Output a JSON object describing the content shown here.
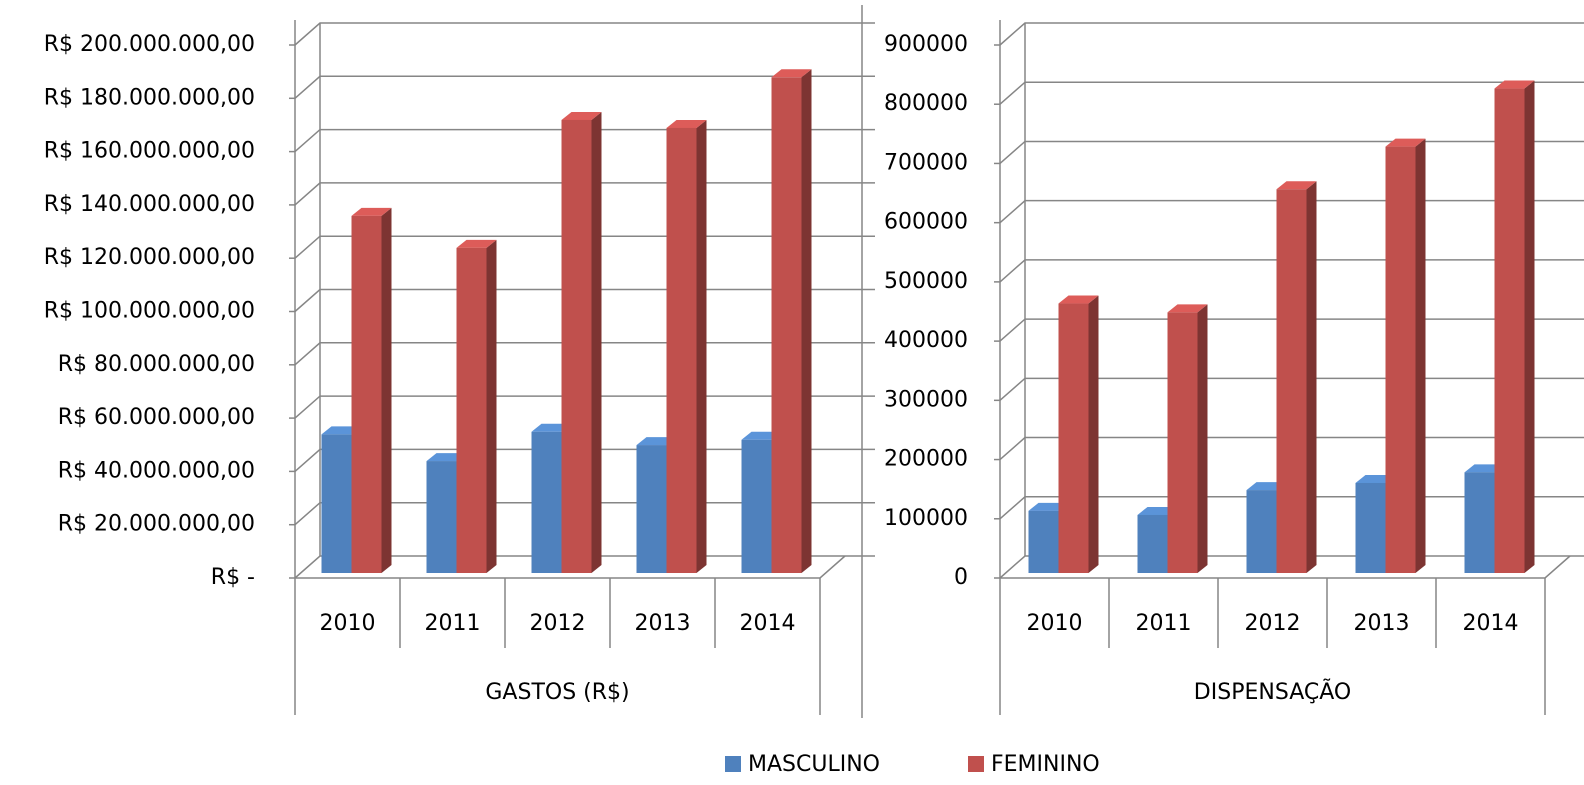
{
  "chart_data": [
    {
      "type": "bar3d",
      "xlabel": "GASTOS (R$)",
      "categories": [
        "2010",
        "2011",
        "2012",
        "2013",
        "2014"
      ],
      "series": [
        {
          "values": [
            52000000,
            42000000,
            53000000,
            48000000,
            50000000
          ]
        },
        {
          "values": [
            134000000,
            122000000,
            170000000,
            167000000,
            186000000
          ]
        }
      ],
      "ylim": [
        0,
        200000000
      ],
      "yticks": [
        {
          "value": 0,
          "label": "R$ -"
        },
        {
          "value": 20000000,
          "label": "R$ 20.000.000,00"
        },
        {
          "value": 40000000,
          "label": "R$ 40.000.000,00"
        },
        {
          "value": 60000000,
          "label": "R$ 60.000.000,00"
        },
        {
          "value": 80000000,
          "label": "R$ 80.000.000,00"
        },
        {
          "value": 100000000,
          "label": "R$ 100.000.000,00"
        },
        {
          "value": 120000000,
          "label": "R$ 120.000.000,00"
        },
        {
          "value": 140000000,
          "label": "R$ 140.000.000,00"
        },
        {
          "value": 160000000,
          "label": "R$ 160.000.000,00"
        },
        {
          "value": 180000000,
          "label": "R$ 180.000.000,00"
        },
        {
          "value": 200000000,
          "label": "R$ 200.000.000,00"
        }
      ],
      "grid": true
    },
    {
      "type": "bar3d",
      "xlabel": "DISPENSAÇÃO",
      "categories": [
        "2010",
        "2011",
        "2012",
        "2013",
        "2014"
      ],
      "series": [
        {
          "values": [
            105000,
            98000,
            140000,
            152000,
            170000
          ]
        },
        {
          "values": [
            455000,
            440000,
            648000,
            720000,
            818000
          ]
        }
      ],
      "ylim": [
        0,
        900000
      ],
      "yticks": [
        0,
        100000,
        200000,
        300000,
        400000,
        500000,
        600000,
        700000,
        800000,
        900000
      ],
      "grid": true
    }
  ],
  "legend": {
    "items": [
      {
        "name": "MASCULINO",
        "color": "#4f81bd"
      },
      {
        "name": "FEMININO",
        "color": "#c0504d"
      }
    ]
  }
}
